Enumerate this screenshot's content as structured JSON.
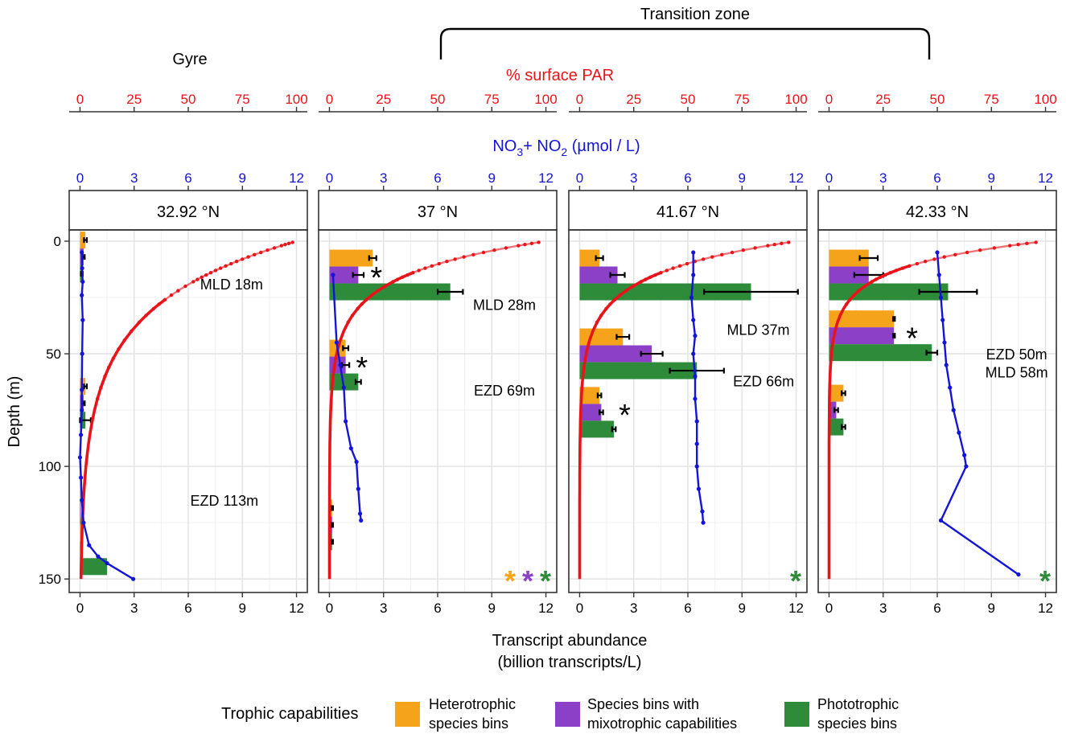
{
  "chart_data": {
    "type": "bar+line",
    "header": {
      "transition_label": "Transition zone",
      "gyre_label": "Gyre"
    },
    "par_axis": {
      "title": "% surface PAR",
      "ticks": [
        "0",
        "25",
        "50",
        "75",
        "100"
      ],
      "range": [
        0,
        100
      ]
    },
    "nitrate_axis": {
      "title_main": "NO",
      "title_sub1": "3",
      "title_plus": "+ NO",
      "title_sub2": "2",
      "title_unit": " (µmol / L)",
      "ticks": [
        "0",
        "3",
        "6",
        "9",
        "12"
      ],
      "range": [
        0,
        12
      ]
    },
    "abundance_axis": {
      "title_line1": "Transcript abundance",
      "title_line2": "(billion transcripts/L)",
      "ticks": [
        "0",
        "3",
        "6",
        "9",
        "12"
      ],
      "range": [
        -0.6,
        12.6
      ]
    },
    "depth_axis": {
      "title": "Depth (m)",
      "ticks": [
        "0",
        "50",
        "100",
        "150"
      ],
      "range": [
        -5,
        156
      ]
    },
    "legend": {
      "title": "Trophic capabilities",
      "items": [
        {
          "key": "het",
          "line1": "Heterotrophic",
          "line2": "species bins",
          "color": "#F5A31A"
        },
        {
          "key": "mix",
          "line1": "Species bins with",
          "line2": "mixotrophic capabilities",
          "color": "#8C3FC7"
        },
        {
          "key": "pho",
          "line1": "Phototrophic",
          "line2": "species bins",
          "color": "#2E8B3A"
        }
      ]
    },
    "colors": {
      "par": "#E8141A",
      "nitrate": "#1414D8",
      "het": "#F5A31A",
      "mix": "#8C3FC7",
      "pho": "#2E8B3A"
    },
    "panels": [
      {
        "label": "32.92 °N",
        "annotations": [
          {
            "text": "MLD 18m",
            "depth": 19,
            "ab": 8.4
          },
          {
            "text": "EZD 113m",
            "depth": 115,
            "ab": 8.0
          }
        ],
        "bars": [
          {
            "depth": 7,
            "het": 0.3,
            "mix": 0.2,
            "pho": 0.1,
            "err": [
              0.08,
              0.06,
              0.05
            ],
            "star": false
          },
          {
            "depth": 72,
            "het": 0.3,
            "mix": 0.2,
            "pho": 0.3,
            "err": [
              0.08,
              0.06,
              0.3
            ],
            "star": false
          },
          {
            "depth": 119,
            "het": 0.05,
            "mix": 0.05,
            "pho": 0.05,
            "err": [
              0,
              0,
              0
            ],
            "star": false
          },
          {
            "depth": 137,
            "het": 0.05,
            "mix": 0.05,
            "pho": 1.5,
            "err": [
              0,
              0,
              0
            ],
            "star": false
          }
        ],
        "nitrate": [
          [
            0.1,
            5
          ],
          [
            0.12,
            12
          ],
          [
            0.15,
            18
          ],
          [
            0.1,
            24
          ],
          [
            0.15,
            35
          ],
          [
            0.12,
            50
          ],
          [
            0.1,
            66
          ],
          [
            0.1,
            75
          ],
          [
            0.05,
            86
          ],
          [
            0.0,
            96
          ],
          [
            0.05,
            105
          ],
          [
            0.1,
            115
          ],
          [
            0.2,
            125
          ],
          [
            0.5,
            135
          ],
          [
            1.0,
            140
          ],
          [
            1.5,
            143
          ],
          [
            2.95,
            150
          ]
        ],
        "par_k": 0.036,
        "corner_stars": []
      },
      {
        "label": "37 °N",
        "annotations": [
          {
            "text": "MLD 28m",
            "depth": 28,
            "ab": 9.7
          },
          {
            "text": "EZD 69m",
            "depth": 66,
            "ab": 9.7
          }
        ],
        "bars": [
          {
            "depth": 15,
            "het": 2.4,
            "mix": 1.6,
            "pho": 6.7,
            "err": [
              0.2,
              0.3,
              0.7
            ],
            "star": true,
            "star_ab": 2.6
          },
          {
            "depth": 55,
            "het": 0.9,
            "mix": 0.9,
            "pho": 1.6,
            "err": [
              0.15,
              0.2,
              0.15
            ],
            "star": true,
            "star_ab": 1.8
          },
          {
            "depth": 126,
            "het": 0.15,
            "mix": 0.15,
            "pho": 0.15,
            "err": [
              0.05,
              0.05,
              0.05
            ],
            "star": false
          }
        ],
        "nitrate": [
          [
            0.2,
            15
          ],
          [
            0.4,
            45
          ],
          [
            0.6,
            55
          ],
          [
            0.8,
            65
          ],
          [
            0.9,
            80
          ],
          [
            1.2,
            92
          ],
          [
            1.5,
            98
          ],
          [
            1.6,
            110
          ],
          [
            1.7,
            121
          ],
          [
            1.75,
            124
          ]
        ],
        "par_k": 0.068,
        "corner_stars": [
          "het",
          "mix",
          "pho"
        ]
      },
      {
        "label": "41.67 °N",
        "annotations": [
          {
            "text": "MLD 37m",
            "depth": 39,
            "ab": 9.9
          },
          {
            "text": "EZD 66m",
            "depth": 62,
            "ab": 10.2
          }
        ],
        "bars": [
          {
            "depth": 15,
            "het": 1.1,
            "mix": 2.1,
            "pho": 9.5,
            "err": [
              0.2,
              0.4,
              2.6
            ],
            "star": false
          },
          {
            "depth": 50,
            "het": 2.4,
            "mix": 4.0,
            "pho": 6.5,
            "err": [
              0.35,
              0.6,
              1.5
            ],
            "star": false
          },
          {
            "depth": 76,
            "het": 1.1,
            "mix": 1.2,
            "pho": 1.9,
            "err": [
              0.1,
              0.1,
              0.1
            ],
            "star": true,
            "star_ab": 2.5
          }
        ],
        "nitrate": [
          [
            6.3,
            5
          ],
          [
            6.3,
            15
          ],
          [
            6.2,
            25
          ],
          [
            6.3,
            35
          ],
          [
            6.4,
            42
          ],
          [
            6.3,
            50
          ],
          [
            6.4,
            60
          ],
          [
            6.4,
            70
          ],
          [
            6.5,
            80
          ],
          [
            6.5,
            90
          ],
          [
            6.5,
            100
          ],
          [
            6.6,
            110
          ],
          [
            6.8,
            120
          ],
          [
            6.85,
            125
          ]
        ],
        "par_k": 0.07,
        "corner_stars": [
          "pho"
        ]
      },
      {
        "label": "42.33 °N",
        "annotations": [
          {
            "text": "EZD 50m",
            "depth": 50,
            "ab": 10.4
          },
          {
            "text": "MLD 58m",
            "depth": 58,
            "ab": 10.4
          }
        ],
        "bars": [
          {
            "depth": 15,
            "het": 2.2,
            "mix": 2.2,
            "pho": 6.6,
            "err": [
              0.5,
              0.8,
              1.6
            ],
            "star": false
          },
          {
            "depth": 42,
            "het": 3.6,
            "mix": 3.6,
            "pho": 5.7,
            "err": [
              0.05,
              0.05,
              0.3
            ],
            "star": true,
            "star_ab": 4.6
          },
          {
            "depth": 75,
            "het": 0.8,
            "mix": 0.4,
            "pho": 0.8,
            "err": [
              0.1,
              0.1,
              0.1
            ],
            "star": false
          }
        ],
        "nitrate": [
          [
            6.0,
            5
          ],
          [
            6.1,
            15
          ],
          [
            6.2,
            25
          ],
          [
            6.3,
            35
          ],
          [
            6.4,
            45
          ],
          [
            6.5,
            55
          ],
          [
            6.7,
            65
          ],
          [
            6.9,
            75
          ],
          [
            7.2,
            85
          ],
          [
            7.5,
            95
          ],
          [
            7.6,
            100
          ],
          [
            6.2,
            124
          ],
          [
            10.5,
            148
          ]
        ],
        "par_k": 0.09,
        "corner_stars": [
          "pho"
        ]
      }
    ]
  }
}
